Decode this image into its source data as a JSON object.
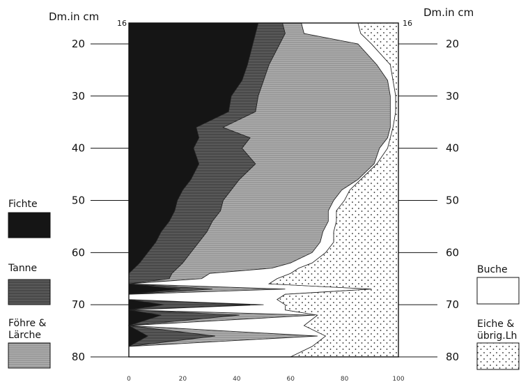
{
  "chart_data": {
    "type": "area",
    "stacked": true,
    "orientation": "horizontal",
    "ylabel_left": "Dm.in cm",
    "ylabel_right": "Dm.in cm",
    "top_value_label": "16",
    "y_ticks": [
      20,
      30,
      40,
      50,
      60,
      70,
      80
    ],
    "x_ticks": [
      "0",
      "20",
      "40",
      "60",
      "80",
      "100"
    ],
    "xlim": [
      0,
      100
    ],
    "ylim": [
      16,
      80
    ],
    "y": [
      16,
      18,
      20,
      24,
      27,
      30,
      33,
      36,
      38,
      40,
      43,
      46,
      48,
      50,
      52,
      54,
      56,
      58,
      60,
      62,
      63,
      64,
      65,
      66,
      67,
      68,
      69,
      70,
      71,
      72,
      74,
      76,
      78,
      80
    ],
    "cumulative_boundaries": [
      {
        "name": "Fichte",
        "values": [
          48,
          47,
          46,
          44,
          42,
          38,
          37,
          25,
          26,
          24,
          26,
          23,
          20,
          18,
          17,
          15,
          12,
          10,
          7,
          4,
          2,
          0,
          0,
          0,
          19,
          0,
          0,
          13,
          0,
          12,
          0,
          7,
          0,
          0
        ]
      },
      {
        "name": "Tanne",
        "values": [
          57,
          58,
          56,
          52,
          50,
          48,
          47,
          35,
          45,
          42,
          47,
          41,
          38,
          35,
          34,
          31,
          29,
          26,
          23,
          20,
          18,
          16,
          15,
          0,
          31,
          0,
          0,
          45,
          0,
          41,
          0,
          32,
          0,
          0
        ]
      },
      {
        "name": "Föhre & Lärche",
        "values": [
          64,
          65,
          85,
          92,
          96,
          97,
          97,
          97,
          96,
          93,
          91,
          85,
          79,
          76,
          74,
          74,
          72,
          71,
          68,
          60,
          53,
          30,
          27,
          0,
          58,
          0,
          0,
          50,
          0,
          69,
          0,
          70,
          0,
          0
        ]
      },
      {
        "name": "Buche",
        "values": [
          85,
          86,
          90,
          97,
          98,
          99,
          99,
          98,
          97,
          96,
          92,
          86,
          82,
          80,
          77,
          77,
          76,
          76,
          73,
          68,
          63,
          60,
          55,
          52,
          90,
          58,
          55,
          58,
          58,
          70,
          65,
          73,
          68,
          60
        ]
      },
      {
        "name": "Eiche & übrig.Lh",
        "values": [
          100,
          100,
          100,
          100,
          100,
          100,
          100,
          100,
          100,
          100,
          100,
          100,
          100,
          100,
          100,
          100,
          100,
          100,
          100,
          100,
          100,
          100,
          100,
          100,
          100,
          100,
          100,
          100,
          100,
          100,
          100,
          100,
          100,
          100
        ]
      }
    ],
    "legend": [
      {
        "name": "Fichte",
        "placement": "left"
      },
      {
        "name": "Tanne",
        "placement": "left"
      },
      {
        "name": "Föhre & Lärche",
        "placement": "left"
      },
      {
        "name": "Buche",
        "placement": "right"
      },
      {
        "name": "Eiche & übrig.Lh",
        "placement": "right"
      }
    ],
    "grid": false
  },
  "labels": {
    "dm_left": "Dm.in cm",
    "dm_right": "Dm.in cm",
    "top16_left": "16",
    "top16_right": "16",
    "legend_fichte": "Fichte",
    "legend_tanne": "Tanne",
    "legend_foehre_1": "Föhre &",
    "legend_foehre_2": "Lärche",
    "legend_buche": "Buche",
    "legend_eiche_1": "Eiche &",
    "legend_eiche_2": "übrig.Lh"
  },
  "colors": {
    "fichte": "#151515",
    "tanne": "#585858",
    "foehre": "#a6a6a6",
    "buche": "#ffffff",
    "eiche": "#ffffff",
    "ink": "#111111"
  }
}
